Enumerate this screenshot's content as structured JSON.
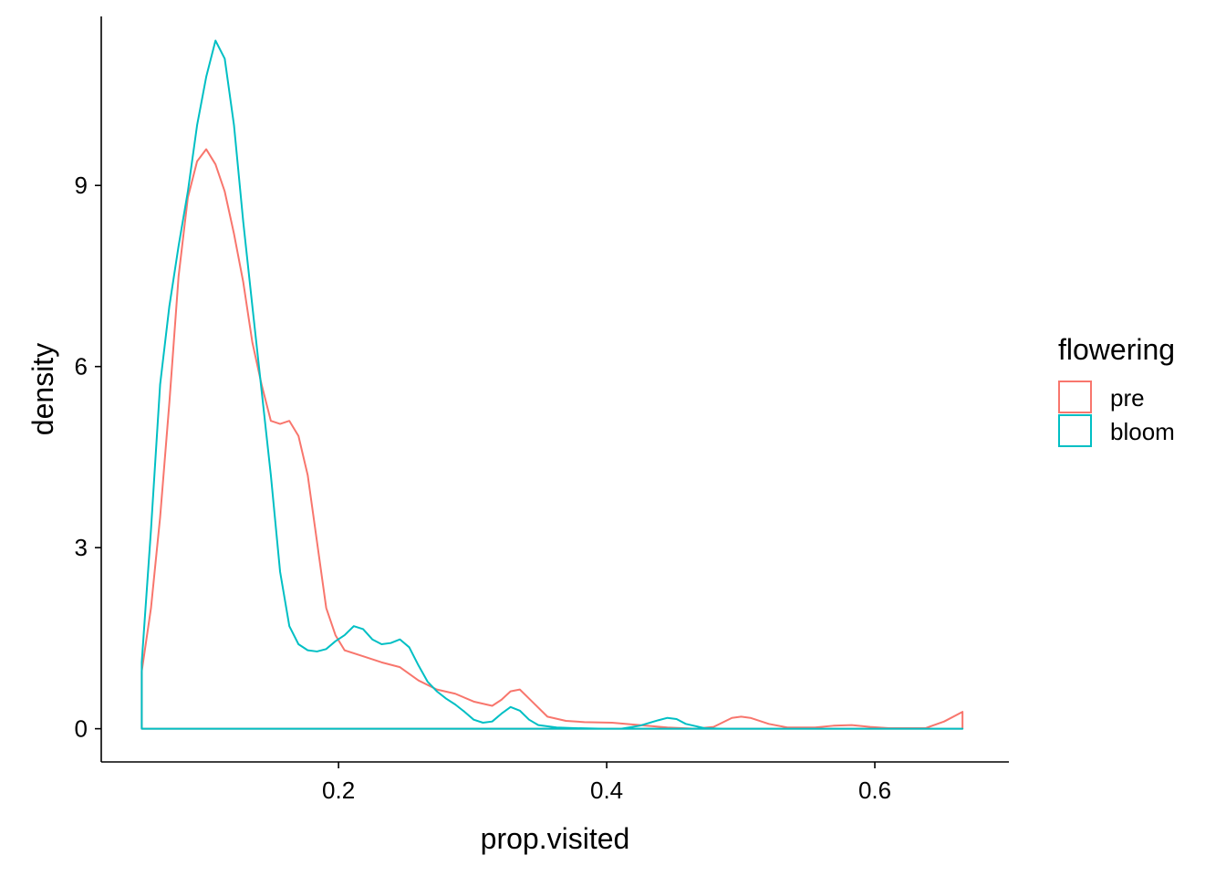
{
  "chart_data": {
    "type": "line",
    "subtype": "density",
    "title": "",
    "xlabel": "prop.visited",
    "ylabel": "density",
    "xlim": [
      0.023,
      0.7
    ],
    "ylim": [
      -0.55,
      11.8
    ],
    "x_ticks": [
      0.2,
      0.4,
      0.6
    ],
    "x_tick_labels": [
      "0.2",
      "0.4",
      "0.6"
    ],
    "y_ticks": [
      0,
      3,
      6,
      9
    ],
    "y_tick_labels": [
      "0",
      "3",
      "6",
      "9"
    ],
    "grid": false,
    "legend": {
      "title": "flowering",
      "position": "right"
    },
    "series": [
      {
        "name": "pre",
        "color": "#F8766D",
        "points": [
          [
            0.0532,
            0.95
          ],
          [
            0.0601,
            2.0
          ],
          [
            0.0669,
            3.5
          ],
          [
            0.0738,
            5.4
          ],
          [
            0.0807,
            7.5
          ],
          [
            0.0876,
            8.8
          ],
          [
            0.0945,
            9.4
          ],
          [
            0.1013,
            9.6
          ],
          [
            0.1082,
            9.35
          ],
          [
            0.1151,
            8.9
          ],
          [
            0.122,
            8.2
          ],
          [
            0.1289,
            7.4
          ],
          [
            0.1357,
            6.4
          ],
          [
            0.1426,
            5.7
          ],
          [
            0.1495,
            5.1
          ],
          [
            0.1564,
            5.05
          ],
          [
            0.1633,
            5.1
          ],
          [
            0.1701,
            4.85
          ],
          [
            0.177,
            4.2
          ],
          [
            0.1839,
            3.1
          ],
          [
            0.1908,
            2.0
          ],
          [
            0.1977,
            1.55
          ],
          [
            0.2045,
            1.3
          ],
          [
            0.2183,
            1.2
          ],
          [
            0.2321,
            1.1
          ],
          [
            0.2458,
            1.02
          ],
          [
            0.2596,
            0.8
          ],
          [
            0.2733,
            0.65
          ],
          [
            0.2871,
            0.58
          ],
          [
            0.3008,
            0.45
          ],
          [
            0.3146,
            0.38
          ],
          [
            0.3215,
            0.48
          ],
          [
            0.3283,
            0.62
          ],
          [
            0.3352,
            0.65
          ],
          [
            0.3421,
            0.5
          ],
          [
            0.3558,
            0.2
          ],
          [
            0.3696,
            0.13
          ],
          [
            0.3834,
            0.11
          ],
          [
            0.404,
            0.1
          ],
          [
            0.4246,
            0.06
          ],
          [
            0.4453,
            0.02
          ],
          [
            0.4659,
            0.0
          ],
          [
            0.4797,
            0.03
          ],
          [
            0.4934,
            0.18
          ],
          [
            0.5003,
            0.2
          ],
          [
            0.5072,
            0.18
          ],
          [
            0.5209,
            0.08
          ],
          [
            0.5347,
            0.02
          ],
          [
            0.5553,
            0.02
          ],
          [
            0.5691,
            0.05
          ],
          [
            0.5828,
            0.06
          ],
          [
            0.5966,
            0.03
          ],
          [
            0.6104,
            0.01
          ],
          [
            0.6379,
            0.01
          ],
          [
            0.6517,
            0.12
          ],
          [
            0.6654,
            0.28
          ]
        ]
      },
      {
        "name": "bloom",
        "color": "#00BFC4",
        "points": [
          [
            0.0532,
            1.1
          ],
          [
            0.0601,
            3.3
          ],
          [
            0.0669,
            5.7
          ],
          [
            0.0738,
            7.0
          ],
          [
            0.0807,
            8.0
          ],
          [
            0.0876,
            8.9
          ],
          [
            0.0945,
            10.0
          ],
          [
            0.1013,
            10.8
          ],
          [
            0.1082,
            11.4
          ],
          [
            0.1151,
            11.1
          ],
          [
            0.122,
            10.0
          ],
          [
            0.1289,
            8.4
          ],
          [
            0.1357,
            7.0
          ],
          [
            0.1426,
            5.6
          ],
          [
            0.1495,
            4.2
          ],
          [
            0.1564,
            2.6
          ],
          [
            0.1633,
            1.7
          ],
          [
            0.1701,
            1.4
          ],
          [
            0.177,
            1.3
          ],
          [
            0.1839,
            1.28
          ],
          [
            0.1908,
            1.32
          ],
          [
            0.1977,
            1.45
          ],
          [
            0.2045,
            1.55
          ],
          [
            0.2114,
            1.7
          ],
          [
            0.2183,
            1.65
          ],
          [
            0.2252,
            1.48
          ],
          [
            0.2321,
            1.4
          ],
          [
            0.2389,
            1.42
          ],
          [
            0.2458,
            1.48
          ],
          [
            0.2527,
            1.35
          ],
          [
            0.2596,
            1.05
          ],
          [
            0.2664,
            0.78
          ],
          [
            0.2733,
            0.62
          ],
          [
            0.2802,
            0.5
          ],
          [
            0.2871,
            0.4
          ],
          [
            0.294,
            0.28
          ],
          [
            0.3008,
            0.15
          ],
          [
            0.3077,
            0.1
          ],
          [
            0.3146,
            0.12
          ],
          [
            0.3215,
            0.25
          ],
          [
            0.3283,
            0.36
          ],
          [
            0.3352,
            0.3
          ],
          [
            0.3421,
            0.15
          ],
          [
            0.349,
            0.06
          ],
          [
            0.3627,
            0.02
          ],
          [
            0.3765,
            0.01
          ],
          [
            0.3971,
            0.0
          ],
          [
            0.4109,
            0.0
          ],
          [
            0.4246,
            0.05
          ],
          [
            0.4384,
            0.14
          ],
          [
            0.4453,
            0.18
          ],
          [
            0.4521,
            0.16
          ],
          [
            0.459,
            0.08
          ],
          [
            0.4728,
            0.01
          ],
          [
            0.4866,
            0.0
          ],
          [
            0.5141,
            0.0
          ],
          [
            0.5416,
            0.0
          ],
          [
            0.5691,
            0.0
          ],
          [
            0.5966,
            0.0
          ],
          [
            0.6241,
            0.0
          ],
          [
            0.6517,
            0.0
          ],
          [
            0.6654,
            0.0
          ]
        ]
      }
    ]
  }
}
